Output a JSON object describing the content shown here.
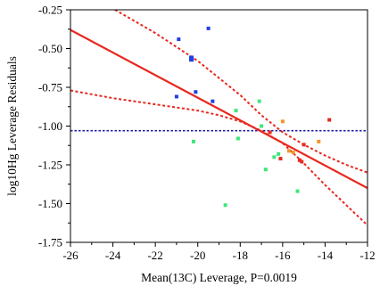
{
  "chart_data": {
    "type": "scatter",
    "xlabel": "Mean(13C) Leverage, P=0.0019",
    "ylabel": "log10Hg Leverage Residuals",
    "xlim": [
      -26,
      -12
    ],
    "ylim": [
      -1.75,
      -0.25
    ],
    "x_ticks": [
      -26,
      -24,
      -22,
      -20,
      -18,
      -16,
      -14,
      -12
    ],
    "y_ticks": [
      -1.75,
      -1.5,
      -1.25,
      -1.0,
      -0.75,
      -0.5,
      -0.25
    ],
    "x_tick_labels": [
      "-26",
      "-24",
      "-22",
      "-20",
      "-18",
      "-16",
      "-14",
      "-12"
    ],
    "y_tick_labels": [
      "-1.75",
      "-1.50",
      "-1.25",
      "-1.00",
      "-0.75",
      "-0.50",
      "-0.25"
    ],
    "grid": false,
    "legend": "none",
    "reference_line": {
      "y": -1.03,
      "style": "dotted",
      "color": "#1f1fa8"
    },
    "fit_line": {
      "x": [
        -26,
        -12
      ],
      "y": [
        -0.38,
        -1.4
      ],
      "color": "#e8281e"
    },
    "confidence_band": {
      "color": "#e8281e",
      "upper": {
        "x": [
          -23.9,
          -22.0,
          -20.0,
          -18.0,
          -17.0,
          -16.0,
          -15.0,
          -14.0,
          -13.0,
          -12.0
        ],
        "y": [
          -0.25,
          -0.4,
          -0.58,
          -0.8,
          -0.93,
          -1.04,
          -1.12,
          -1.19,
          -1.25,
          -1.3
        ]
      },
      "lower": {
        "x": [
          -26.0,
          -24.0,
          -22.0,
          -20.0,
          -19.0,
          -18.0,
          -17.0,
          -16.0,
          -15.0,
          -14.0,
          -13.0,
          -12.0
        ],
        "y": [
          -0.77,
          -0.82,
          -0.86,
          -0.9,
          -0.93,
          -0.97,
          -1.03,
          -1.11,
          -1.24,
          -1.38,
          -1.51,
          -1.64
        ]
      }
    },
    "series": [
      {
        "color": "#1f3fe6",
        "points": [
          {
            "x": -20.9,
            "y": -0.44,
            "size": 4
          },
          {
            "x": -19.5,
            "y": -0.37,
            "size": 4
          },
          {
            "x": -20.3,
            "y": -0.56,
            "size": 5
          },
          {
            "x": -20.3,
            "y": -0.57,
            "size": 5
          },
          {
            "x": -21.0,
            "y": -0.81,
            "size": 4
          },
          {
            "x": -20.1,
            "y": -0.78,
            "size": 4
          },
          {
            "x": -19.3,
            "y": -0.84,
            "size": 4
          }
        ]
      },
      {
        "color": "#3fe67a",
        "points": [
          {
            "x": -20.2,
            "y": -1.1,
            "size": 4
          },
          {
            "x": -18.7,
            "y": -1.51,
            "size": 4
          },
          {
            "x": -18.2,
            "y": -0.9,
            "size": 4
          },
          {
            "x": -18.1,
            "y": -1.08,
            "size": 4
          },
          {
            "x": -17.1,
            "y": -0.84,
            "size": 4
          },
          {
            "x": -17.0,
            "y": -1.0,
            "size": 4
          },
          {
            "x": -16.8,
            "y": -1.28,
            "size": 4
          },
          {
            "x": -16.4,
            "y": -1.2,
            "size": 4
          },
          {
            "x": -16.2,
            "y": -1.18,
            "size": 4
          },
          {
            "x": -15.3,
            "y": -1.42,
            "size": 4
          }
        ]
      },
      {
        "color": "#f0962a",
        "points": [
          {
            "x": -16.0,
            "y": -0.97,
            "size": 4
          },
          {
            "x": -15.7,
            "y": -1.16,
            "size": 4
          },
          {
            "x": -15.5,
            "y": -1.17,
            "size": 4
          },
          {
            "x": -14.3,
            "y": -1.1,
            "size": 4
          }
        ]
      },
      {
        "color": "#e8281e",
        "points": [
          {
            "x": -16.6,
            "y": -1.04,
            "size": 4
          },
          {
            "x": -16.1,
            "y": -1.21,
            "size": 4
          },
          {
            "x": -15.0,
            "y": -1.12,
            "size": 4
          },
          {
            "x": -15.2,
            "y": -1.22,
            "size": 4
          },
          {
            "x": -15.1,
            "y": -1.23,
            "size": 4
          },
          {
            "x": -13.8,
            "y": -0.96,
            "size": 4
          }
        ]
      }
    ]
  }
}
